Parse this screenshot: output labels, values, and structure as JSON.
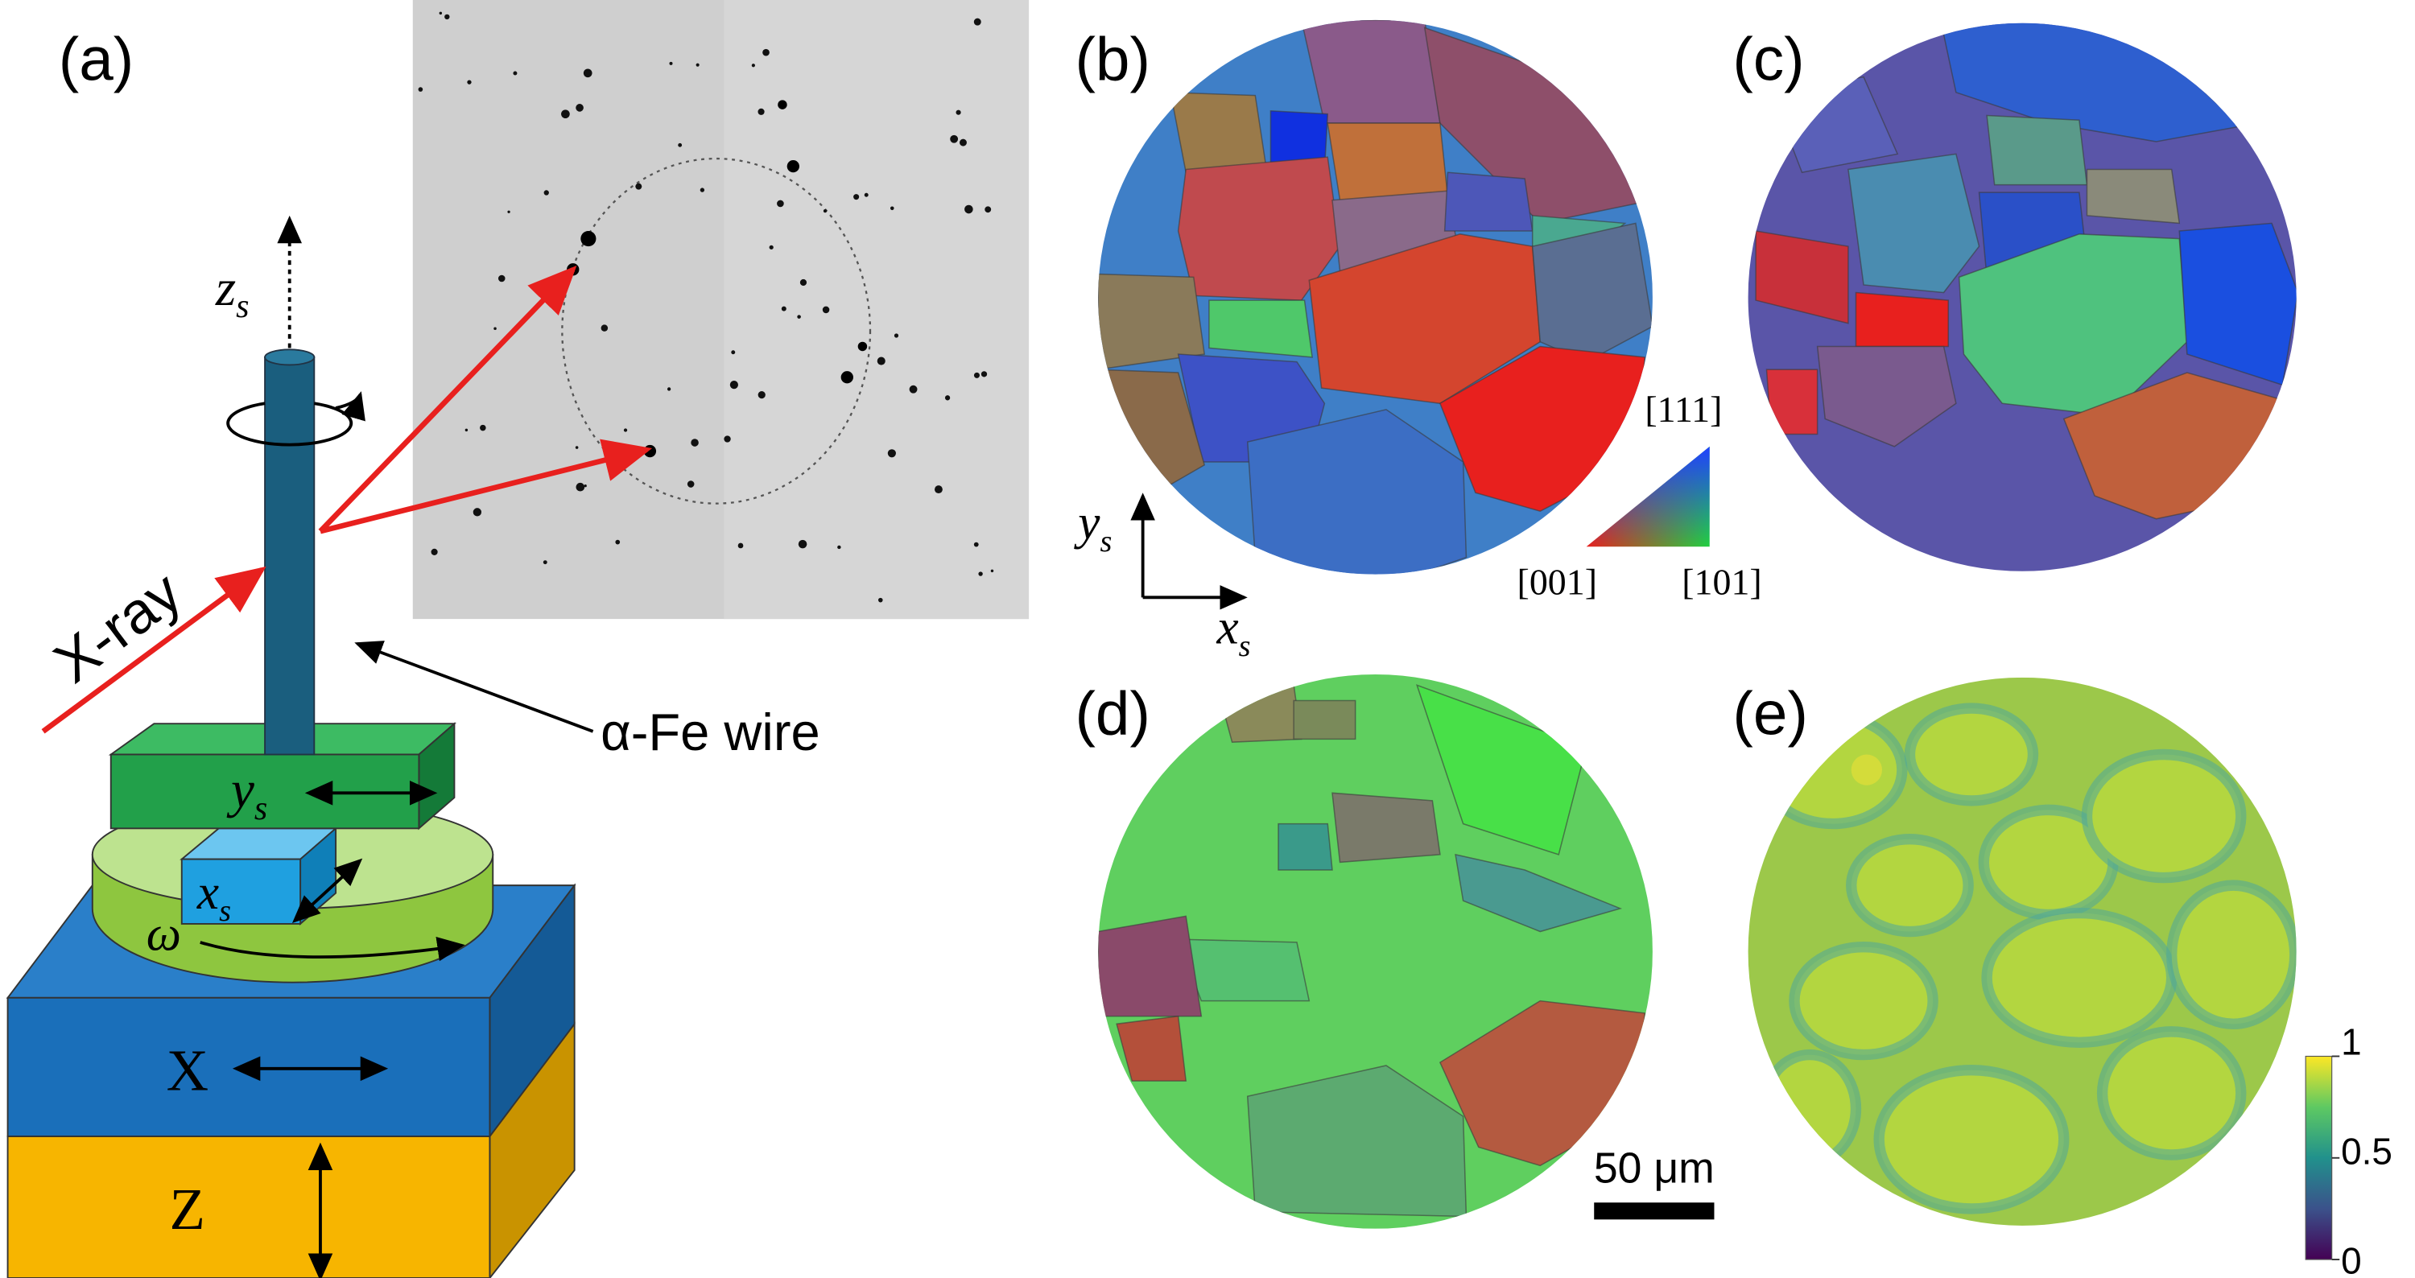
{
  "panels": {
    "a": "(a)",
    "b": "(b)",
    "c": "(c)",
    "d": "(d)",
    "e": "(e)"
  },
  "setup": {
    "xray": "X-ray",
    "wire": "α-Fe wire",
    "zs": {
      "main": "z",
      "sub": "s"
    },
    "ys": {
      "main": "y",
      "sub": "s"
    },
    "xs": {
      "main": "x",
      "sub": "s"
    },
    "omega": "ω",
    "stage_x": "X",
    "stage_z": "Z"
  },
  "ipf_key": {
    "top": "[111]",
    "left": "[001]",
    "right": "[101]"
  },
  "map_axes": {
    "ys": {
      "main": "y",
      "sub": "s"
    },
    "xs": {
      "main": "x",
      "sub": "s"
    }
  },
  "scale_bar": "50 μm",
  "colorbar": {
    "lim": [
      0,
      1
    ],
    "ticks": [
      0,
      0.5,
      1
    ]
  }
}
